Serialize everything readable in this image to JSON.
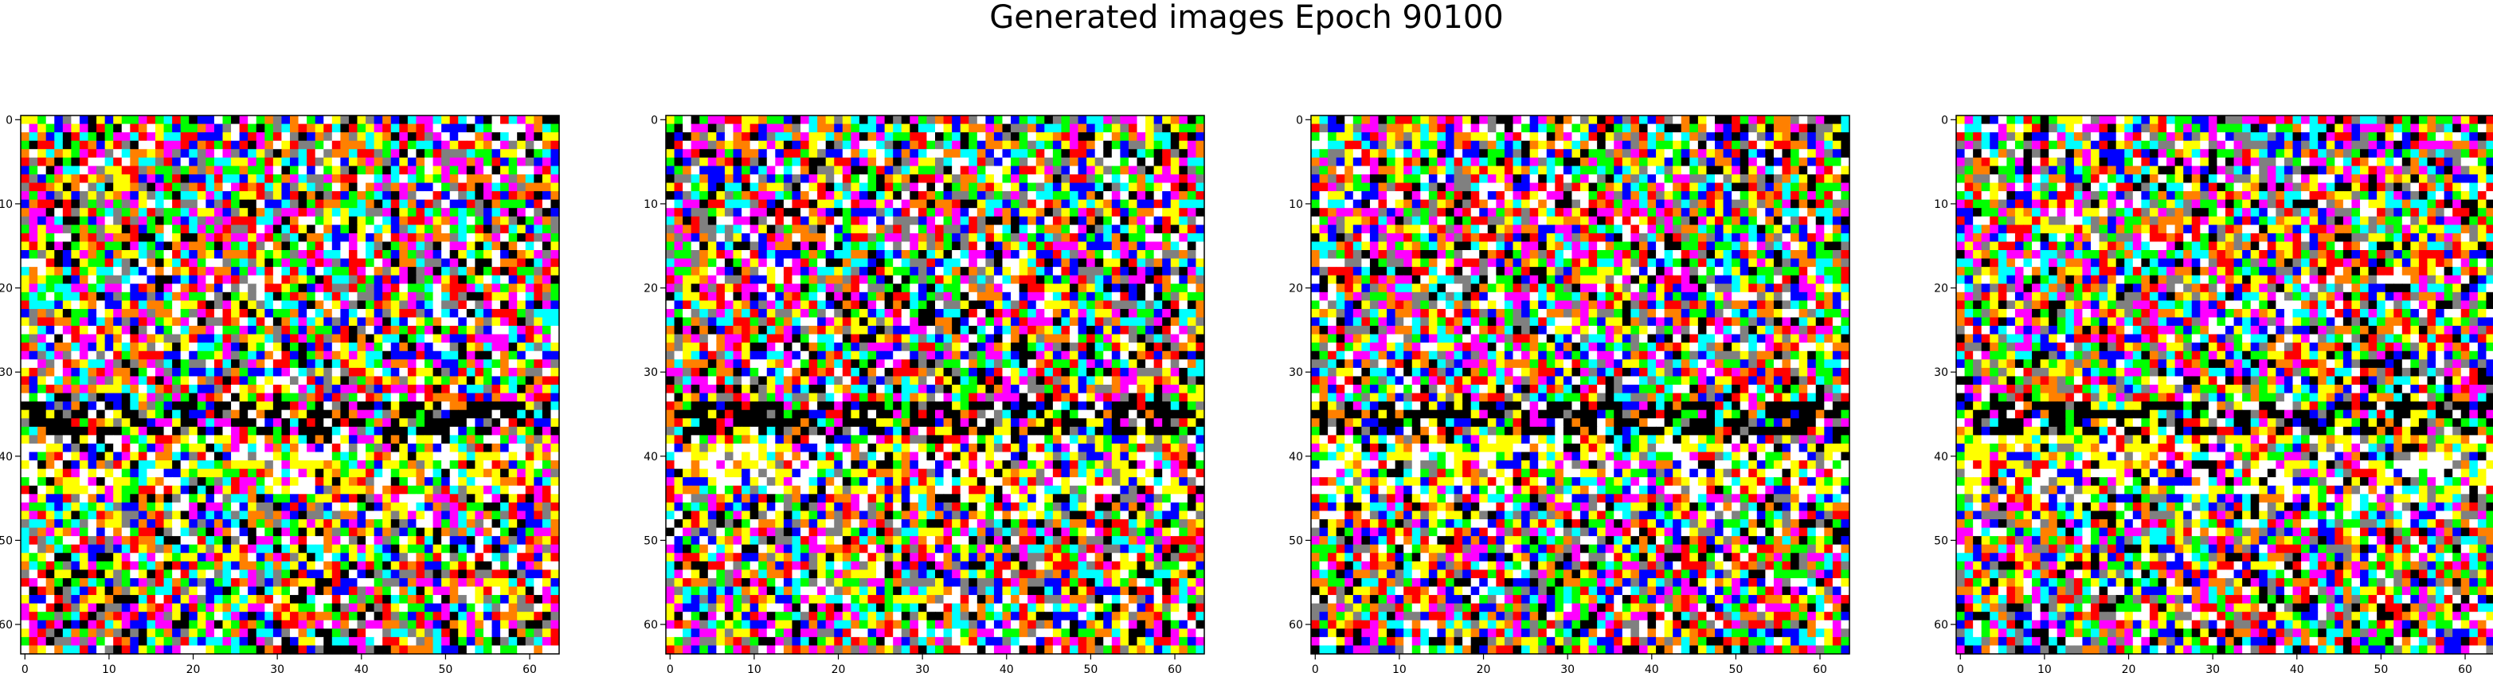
{
  "figure": {
    "title": "Generated images Epoch 90100"
  },
  "chart_data": [
    {
      "type": "heatmap",
      "title": "",
      "xlabel": "",
      "ylabel": "",
      "width": 64,
      "height": 64,
      "xlim": [
        -0.5,
        63.5
      ],
      "ylim": [
        63.5,
        -0.5
      ],
      "xticks": [
        0,
        10,
        20,
        30,
        40,
        50,
        60
      ],
      "yticks": [
        0,
        10,
        20,
        30,
        40,
        50,
        60
      ],
      "grid": false,
      "palette": [
        "#ffffff",
        "#000000",
        "#ffff00",
        "#00ff00",
        "#00ffff",
        "#ff00ff",
        "#ff0000",
        "#0000ff",
        "#808080",
        "#ff8000"
      ],
      "seed": 11
    },
    {
      "type": "heatmap",
      "title": "",
      "xlabel": "",
      "ylabel": "",
      "width": 64,
      "height": 64,
      "xlim": [
        -0.5,
        63.5
      ],
      "ylim": [
        63.5,
        -0.5
      ],
      "xticks": [
        0,
        10,
        20,
        30,
        40,
        50,
        60
      ],
      "yticks": [
        0,
        10,
        20,
        30,
        40,
        50,
        60
      ],
      "grid": false,
      "palette": [
        "#ffffff",
        "#000000",
        "#ffff00",
        "#00ff00",
        "#00ffff",
        "#ff00ff",
        "#ff0000",
        "#0000ff",
        "#808080",
        "#ff8000"
      ],
      "seed": 12
    },
    {
      "type": "heatmap",
      "title": "",
      "xlabel": "",
      "ylabel": "",
      "width": 64,
      "height": 64,
      "xlim": [
        -0.5,
        63.5
      ],
      "ylim": [
        63.5,
        -0.5
      ],
      "xticks": [
        0,
        10,
        20,
        30,
        40,
        50,
        60
      ],
      "yticks": [
        0,
        10,
        20,
        30,
        40,
        50,
        60
      ],
      "grid": false,
      "palette": [
        "#ffffff",
        "#000000",
        "#ffff00",
        "#00ff00",
        "#00ffff",
        "#ff00ff",
        "#ff0000",
        "#0000ff",
        "#808080",
        "#ff8000"
      ],
      "seed": 13
    },
    {
      "type": "heatmap",
      "title": "",
      "xlabel": "",
      "ylabel": "",
      "width": 64,
      "height": 64,
      "xlim": [
        -0.5,
        63.5
      ],
      "ylim": [
        63.5,
        -0.5
      ],
      "xticks": [
        0,
        10,
        20,
        30,
        40,
        50,
        60
      ],
      "yticks": [
        0,
        10,
        20,
        30,
        40,
        50,
        60
      ],
      "grid": false,
      "palette": [
        "#ffffff",
        "#000000",
        "#ffff00",
        "#00ff00",
        "#00ffff",
        "#ff00ff",
        "#ff0000",
        "#0000ff",
        "#808080",
        "#ff8000"
      ],
      "seed": 14
    }
  ]
}
